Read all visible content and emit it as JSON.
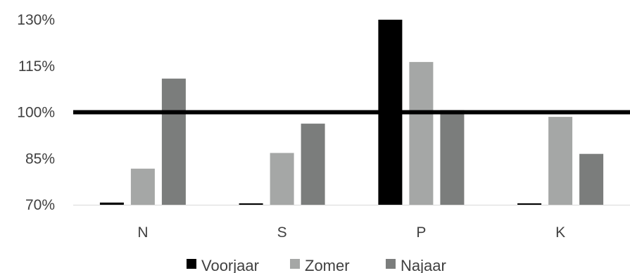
{
  "chart_data": {
    "type": "bar",
    "categories": [
      "N",
      "S",
      "P",
      "K"
    ],
    "series": [
      {
        "name": "Voorjaar",
        "values": [
          70.7,
          69.8,
          130,
          69.8
        ]
      },
      {
        "name": "Zomer",
        "values": [
          81.7,
          86.8,
          116.3,
          98.5
        ]
      },
      {
        "name": "Najaar",
        "values": [
          110.9,
          96.3,
          100.7,
          86.5
        ]
      }
    ],
    "colors": [
      "#000000",
      "#a5a7a6",
      "#7b7d7c"
    ],
    "y_ticks": [
      "70%",
      "85%",
      "100%",
      "115%",
      "130%"
    ],
    "y_tick_values": [
      70,
      85,
      100,
      115,
      130
    ],
    "ylim": [
      70,
      130
    ],
    "reference_line": 100,
    "title": "",
    "xlabel": "",
    "ylabel": "",
    "legend_position": "bottom",
    "grid": false
  }
}
